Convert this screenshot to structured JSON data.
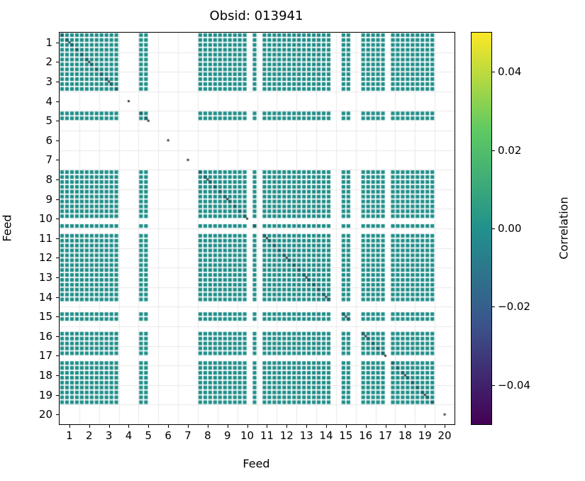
{
  "chart_data": {
    "type": "heatmap",
    "title": "Obsid: 013941",
    "xlabel": "Feed",
    "ylabel": "Feed",
    "feeds": [
      1,
      2,
      3,
      4,
      5,
      6,
      7,
      8,
      9,
      10,
      11,
      12,
      13,
      14,
      15,
      16,
      17,
      18,
      19,
      20
    ],
    "bands_per_feed": 4,
    "approx_correlation_value": 0.0,
    "band_presence": [
      [
        1,
        1,
        1,
        1
      ],
      [
        1,
        1,
        1,
        1
      ],
      [
        1,
        1,
        1,
        1
      ],
      [
        0,
        0,
        0,
        0
      ],
      [
        1,
        1,
        0,
        0
      ],
      [
        0,
        0,
        0,
        0
      ],
      [
        0,
        0,
        0,
        0
      ],
      [
        1,
        1,
        1,
        1
      ],
      [
        1,
        1,
        1,
        1
      ],
      [
        1,
        1,
        0,
        1
      ],
      [
        0,
        1,
        1,
        1
      ],
      [
        1,
        1,
        1,
        1
      ],
      [
        1,
        1,
        1,
        1
      ],
      [
        1,
        1,
        1,
        0
      ],
      [
        0,
        1,
        1,
        0
      ],
      [
        0,
        1,
        1,
        1
      ],
      [
        1,
        1,
        0,
        1
      ],
      [
        1,
        1,
        1,
        1
      ],
      [
        1,
        1,
        1,
        1
      ],
      [
        0,
        0,
        0,
        0
      ]
    ],
    "cell_color": "#1f8e89",
    "diagonal_cell_color": "#14666b",
    "missing_feed_marker_color": "#444444",
    "grid_color": "#e8e8e8",
    "colorbar": {
      "label": "Correlation",
      "vmin": -0.05,
      "vmax": 0.05,
      "tick_values": [
        0.04,
        0.02,
        0.0,
        -0.02,
        -0.04
      ],
      "tick_labels": [
        "0.04",
        "0.02",
        "0.00",
        "−0.02",
        "−0.04"
      ],
      "gradient_stops": [
        "#fde725",
        "#5ec962",
        "#21918c",
        "#3b528b",
        "#440154"
      ]
    }
  }
}
